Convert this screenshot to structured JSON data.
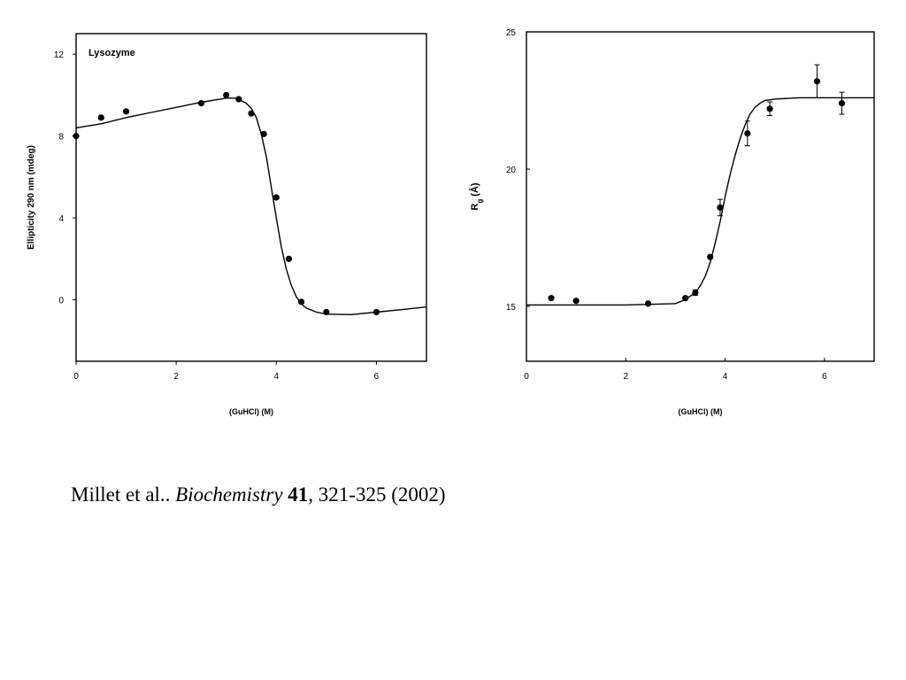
{
  "chart_data": [
    {
      "type": "scatter",
      "title": "",
      "annotation": "Lysozyme",
      "xlabel": "(GuHCl) (M)",
      "ylabel": "Ellipticity 290 nm (mdeg)",
      "xlim": [
        0,
        7
      ],
      "ylim": [
        -3,
        13
      ],
      "xticks": [
        0,
        2,
        4,
        6
      ],
      "yticks": [
        0,
        4,
        8,
        12
      ],
      "grid": false,
      "points": [
        {
          "x": 0.0,
          "y": 8.0
        },
        {
          "x": 0.5,
          "y": 8.9
        },
        {
          "x": 1.0,
          "y": 9.2
        },
        {
          "x": 2.5,
          "y": 9.6
        },
        {
          "x": 3.0,
          "y": 10.0
        },
        {
          "x": 3.25,
          "y": 9.8
        },
        {
          "x": 3.5,
          "y": 9.1
        },
        {
          "x": 3.75,
          "y": 8.1
        },
        {
          "x": 4.0,
          "y": 5.0
        },
        {
          "x": 4.25,
          "y": 2.0
        },
        {
          "x": 4.5,
          "y": -0.1
        },
        {
          "x": 5.0,
          "y": -0.6
        },
        {
          "x": 6.0,
          "y": -0.6
        }
      ],
      "fit": {
        "x": [
          0,
          0.5,
          1,
          1.5,
          2,
          2.5,
          3,
          3.2,
          3.4,
          3.5,
          3.6,
          3.7,
          3.8,
          3.9,
          4.0,
          4.1,
          4.2,
          4.3,
          4.4,
          4.5,
          4.6,
          4.8,
          5.0,
          5.5,
          6.0,
          6.5,
          7.0
        ],
        "y": [
          8.4,
          8.6,
          8.9,
          9.15,
          9.4,
          9.65,
          9.85,
          9.85,
          9.6,
          9.35,
          8.9,
          8.1,
          7.0,
          5.5,
          4.0,
          2.6,
          1.5,
          0.7,
          0.15,
          -0.2,
          -0.4,
          -0.6,
          -0.7,
          -0.72,
          -0.6,
          -0.48,
          -0.35
        ]
      }
    },
    {
      "type": "scatter",
      "title": "",
      "xlabel": "(GuHCl) (M)",
      "ylabel": "Rg (Å)",
      "ylabel_main": "R",
      "ylabel_sub": "g",
      "ylabel_unit": "(Å)",
      "xlim": [
        0,
        7
      ],
      "ylim": [
        13,
        25
      ],
      "xticks": [
        0,
        2,
        4,
        6
      ],
      "yticks": [
        15,
        20,
        25
      ],
      "grid": false,
      "points": [
        {
          "x": 0.5,
          "y": 15.3,
          "err": 0
        },
        {
          "x": 1.0,
          "y": 15.2,
          "err": 0
        },
        {
          "x": 2.45,
          "y": 15.1,
          "err": 0
        },
        {
          "x": 3.2,
          "y": 15.3,
          "err": 0
        },
        {
          "x": 3.4,
          "y": 15.5,
          "err": 0.1
        },
        {
          "x": 3.7,
          "y": 16.8,
          "err": 0
        },
        {
          "x": 3.9,
          "y": 18.6,
          "err": 0.3
        },
        {
          "x": 4.45,
          "y": 21.3,
          "err": 0.45
        },
        {
          "x": 4.9,
          "y": 22.2,
          "err": 0.25
        },
        {
          "x": 5.85,
          "y": 23.2,
          "err": 0.6
        },
        {
          "x": 6.35,
          "y": 22.4,
          "err": 0.4
        }
      ],
      "fit": {
        "x": [
          0,
          1,
          2,
          3,
          3.2,
          3.4,
          3.5,
          3.6,
          3.7,
          3.8,
          3.9,
          4.0,
          4.1,
          4.2,
          4.3,
          4.4,
          4.5,
          4.6,
          4.7,
          4.8,
          5.0,
          5.5,
          6.0,
          6.5,
          7.0
        ],
        "y": [
          15.05,
          15.05,
          15.05,
          15.1,
          15.25,
          15.5,
          15.75,
          16.1,
          16.6,
          17.3,
          18.1,
          19.0,
          19.8,
          20.5,
          21.1,
          21.6,
          22.0,
          22.25,
          22.4,
          22.5,
          22.55,
          22.6,
          22.6,
          22.6,
          22.6
        ]
      }
    }
  ],
  "caption": {
    "authors": "Millet et al.. ",
    "journal": "Biochemistry",
    "volume": "41",
    "rest": ", 321-325 (2002)"
  }
}
